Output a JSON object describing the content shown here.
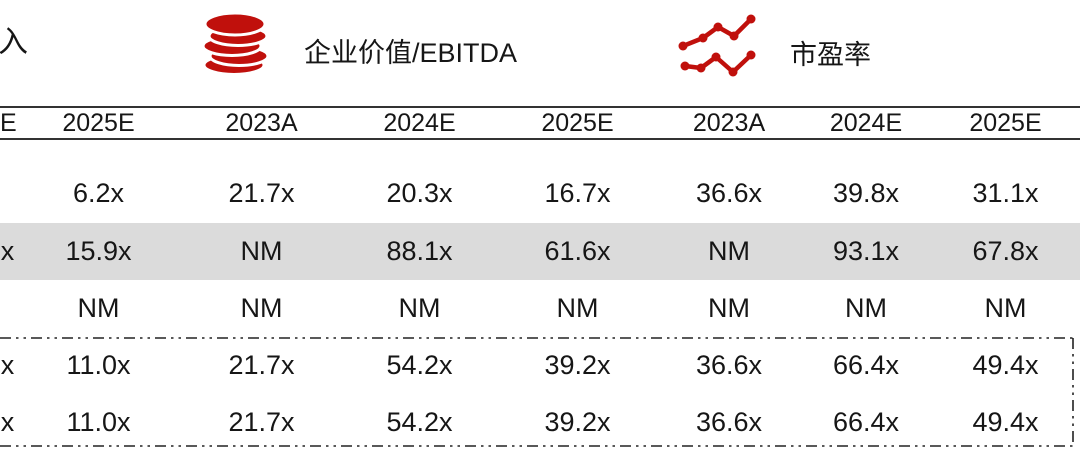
{
  "legend": {
    "partial_label": "入",
    "ev_ebitda_label": "企业价值/EBITDA",
    "pe_label": "市盈率"
  },
  "table": {
    "columns": [
      "E",
      "2025E",
      "2023A",
      "2024E",
      "2025E",
      "2023A",
      "2024E",
      "2025E"
    ],
    "rows": [
      {
        "highlight": false,
        "cells": [
          "",
          "6.2x",
          "21.7x",
          "20.3x",
          "16.7x",
          "36.6x",
          "39.8x",
          "31.1x"
        ]
      },
      {
        "highlight": true,
        "cells": [
          "x",
          "15.9x",
          "NM",
          "88.1x",
          "61.6x",
          "NM",
          "93.1x",
          "67.8x"
        ]
      },
      {
        "highlight": false,
        "cells": [
          "",
          "NM",
          "NM",
          "NM",
          "NM",
          "NM",
          "NM",
          "NM"
        ]
      },
      {
        "highlight": false,
        "cells": [
          "x",
          "11.0x",
          "21.7x",
          "54.2x",
          "39.2x",
          "36.6x",
          "66.4x",
          "49.4x"
        ]
      },
      {
        "highlight": false,
        "cells": [
          "x",
          "11.0x",
          "21.7x",
          "54.2x",
          "39.2x",
          "36.6x",
          "66.4x",
          "49.4x"
        ]
      }
    ]
  },
  "icons": {
    "ev_ebitda": "coins-icon",
    "pe": "line-chart-icon"
  },
  "colors": {
    "accent_red": "#C0100C",
    "highlight_row": "#DBDBDB",
    "text": "#161616",
    "rule_line": "#333333"
  }
}
